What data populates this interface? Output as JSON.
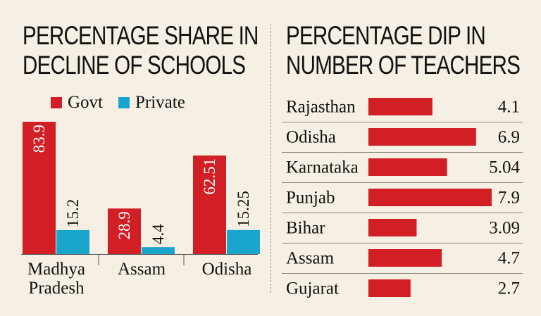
{
  "chart_data": [
    {
      "type": "bar",
      "title": "PERCENTAGE SHARE IN DECLINE OF SCHOOLS",
      "title_lines": [
        "PERCENTAGE SHARE IN",
        "DECLINE OF SCHOOLS"
      ],
      "categories": [
        "Madhya Pradesh",
        "Assam",
        "Odisha"
      ],
      "category_lines": [
        [
          "Madhya",
          "Pradesh"
        ],
        [
          "Assam"
        ],
        [
          "Odisha"
        ]
      ],
      "series": [
        {
          "name": "Govt",
          "color": "#d21f26",
          "values": [
            83.9,
            28.9,
            62.51
          ],
          "labels": [
            "83.9",
            "28.9",
            "62.51"
          ]
        },
        {
          "name": "Private",
          "color": "#1aa6cc",
          "values": [
            15.2,
            4.4,
            15.25
          ],
          "labels": [
            "15.2",
            "4.4",
            "15.25"
          ]
        }
      ],
      "ylim": [
        0,
        83.9
      ],
      "legend": "top",
      "xlabel": "",
      "ylabel": ""
    },
    {
      "type": "bar",
      "orientation": "horizontal",
      "title": "PERCENTAGE DIP IN NUMBER OF TEACHERS",
      "title_lines": [
        "PERCENTAGE DIP IN",
        "NUMBER OF TEACHERS"
      ],
      "categories": [
        "Rajasthan",
        "Odisha",
        "Karnataka",
        "Punjab",
        "Bihar",
        "Assam",
        "Gujarat"
      ],
      "values": [
        4.1,
        6.9,
        5.04,
        7.9,
        3.09,
        4.7,
        2.7
      ],
      "value_labels": [
        "4.1",
        "6.9",
        "5.04",
        "7.9",
        "3.09",
        "4.7",
        "2.7"
      ],
      "color": "#d21f26",
      "xlim": [
        0,
        7.9
      ]
    }
  ]
}
